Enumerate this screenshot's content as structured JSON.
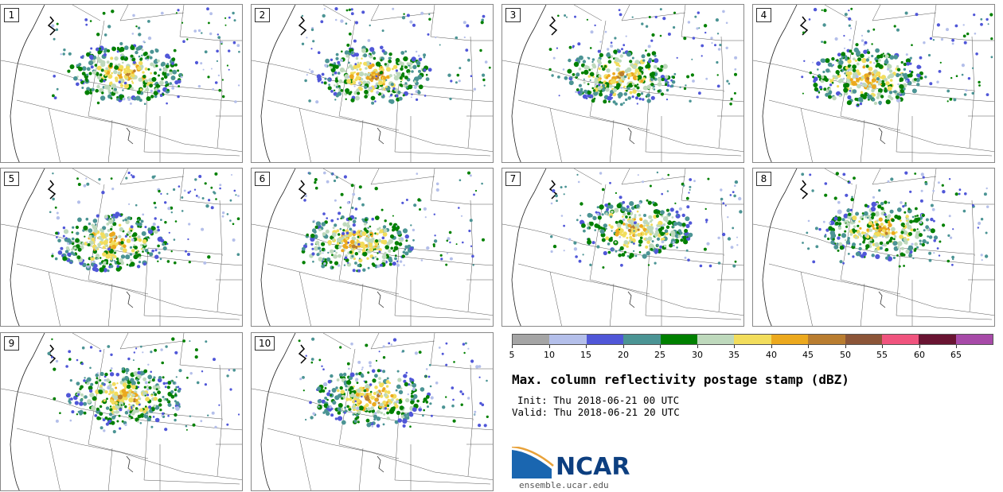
{
  "panels": [
    "1",
    "2",
    "3",
    "4",
    "5",
    "6",
    "7",
    "8",
    "9",
    "10"
  ],
  "colorbar": {
    "ticks": [
      "5",
      "10",
      "15",
      "20",
      "25",
      "30",
      "35",
      "40",
      "45",
      "50",
      "55",
      "60",
      "65"
    ],
    "colors": [
      "#a5a5a5",
      "#b4bfea",
      "#5057d8",
      "#4b9494",
      "#008000",
      "#bed9bc",
      "#f2dd5c",
      "#eca91e",
      "#b97d30",
      "#8c5538",
      "#f0547e",
      "#691432",
      "#a74aa8"
    ]
  },
  "title": "Max. column reflectivity postage stamp (dBZ)",
  "init": "Init: Thu 2018-06-21 00 UTC",
  "valid": "Valid: Thu 2018-06-21 20 UTC",
  "logo": {
    "text": "NCAR",
    "url_text": "ensemble.ucar.edu"
  }
}
